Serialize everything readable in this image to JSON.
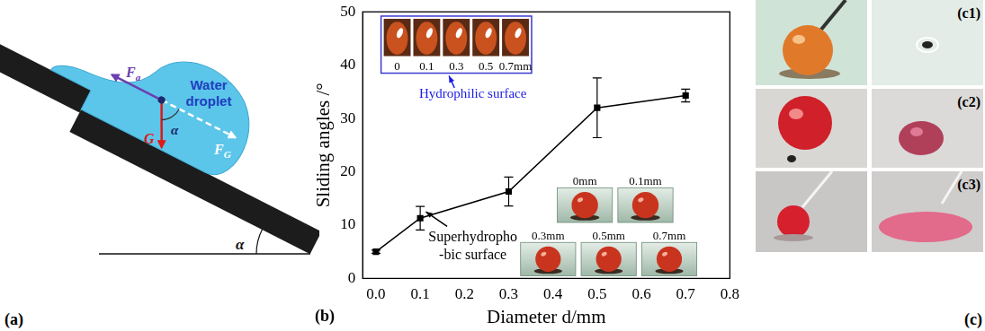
{
  "panels": {
    "a": {
      "label": "(a)",
      "droplet_label": [
        "Water",
        "droplet"
      ],
      "adhesion_force": {
        "symbol": "F",
        "subscript": "a"
      },
      "gravity_component": {
        "symbol": "F",
        "subscript": "G"
      },
      "gravity": "G",
      "droplet_angle": "α",
      "incline_angle": "α"
    },
    "b": {
      "label": "(b)"
    },
    "c": {
      "label": "(c)",
      "rows": [
        "(c1)",
        "(c2)",
        "(c3)"
      ]
    }
  },
  "chart_data": {
    "type": "line",
    "x": [
      0,
      0.1,
      0.3,
      0.5,
      0.7
    ],
    "values": [
      5,
      11.3,
      16.3,
      32,
      34.3
    ],
    "errors": [
      0.3,
      2.2,
      2.7,
      5.6,
      1.2
    ],
    "color": "#000000",
    "marker": "square",
    "line_style": "solid",
    "x_label": "Diameter d/mm",
    "y_label": "Sliding angles /°",
    "xlim": [
      -0.03,
      0.8
    ],
    "xticks": [
      {
        "value": 0,
        "label": "0.0"
      },
      0.1,
      0.2,
      0.3,
      0.4,
      0.5,
      0.6,
      0.7,
      0.8
    ],
    "ylim": [
      0,
      50
    ],
    "yticks": [
      0,
      10,
      20,
      30,
      40,
      50
    ],
    "grid": false,
    "annotations": {
      "hydrophilic": {
        "label": "Hydrophilic surface",
        "image_labels": [
          "0",
          "0.1",
          "0.3",
          "0.5",
          "0.7mm"
        ]
      },
      "superhydrophobic": {
        "label": [
          "Superhydropho",
          "-bic surface"
        ],
        "image_labels": [
          "0mm",
          "0.1mm",
          "0.3mm",
          "0.5mm",
          "0.7mm"
        ]
      }
    }
  }
}
